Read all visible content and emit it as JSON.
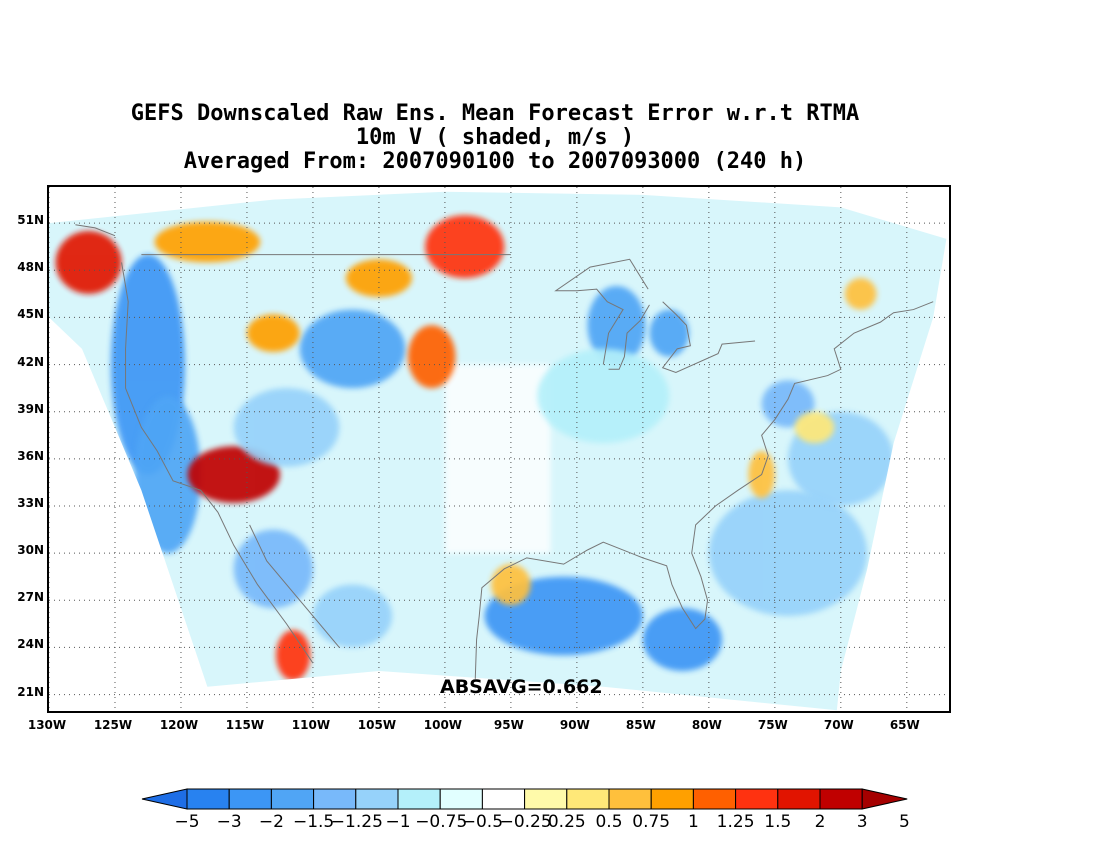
{
  "title": {
    "line1": "GEFS Downscaled Raw Ens. Mean Forecast Error w.r.t RTMA",
    "line2": "10m V ( shaded, m/s )",
    "line3": "Averaged From: 2007090100 to 2007093000 (240 h)"
  },
  "map": {
    "lat_labels": [
      "51N",
      "48N",
      "45N",
      "42N",
      "39N",
      "36N",
      "33N",
      "30N",
      "27N",
      "24N",
      "21N"
    ],
    "lat_values": [
      51,
      48,
      45,
      42,
      39,
      36,
      33,
      30,
      27,
      24,
      21
    ],
    "lon_labels": [
      "130W",
      "125W",
      "120W",
      "115W",
      "110W",
      "105W",
      "100W",
      "95W",
      "90W",
      "85W",
      "80W",
      "75W",
      "70W",
      "65W"
    ],
    "lon_values": [
      -130,
      -125,
      -120,
      -115,
      -110,
      -105,
      -100,
      -95,
      -90,
      -85,
      -80,
      -75,
      -70,
      -65
    ],
    "lat_range": [
      19.7,
      53.3
    ],
    "lon_range": [
      -130,
      -61.5
    ],
    "grid_style": "dotted"
  },
  "absavg_text": "ABSAVG=0.662",
  "colorbar": {
    "labels": [
      "−5",
      "−3",
      "−2",
      "−1.5",
      "−1.25",
      "−1",
      "−0.75",
      "−0.5",
      "−0.25",
      "0.25",
      "0.5",
      "0.75",
      "1",
      "1.25",
      "1.5",
      "2",
      "3",
      "5"
    ],
    "colors": [
      "#1e6ee6",
      "#2882f0",
      "#3c96f5",
      "#50a5f5",
      "#78b9fa",
      "#96d2fa",
      "#b4f0fa",
      "#e1ffff",
      "#ffffff",
      "#fffaaa",
      "#ffe878",
      "#ffc03c",
      "#ffa000",
      "#ff6000",
      "#ff3210",
      "#e11400",
      "#c00000",
      "#a50000"
    ]
  },
  "field_regions": [
    {
      "lon": -122.5,
      "lat": 42,
      "rx": 2.8,
      "ry": 7,
      "value": -2
    },
    {
      "lon": -121,
      "lat": 35,
      "rx": 2.5,
      "ry": 5,
      "value": -1.5
    },
    {
      "lon": -127,
      "lat": 48.5,
      "rx": 2.5,
      "ry": 2,
      "value": 2
    },
    {
      "lon": -116,
      "lat": 35,
      "rx": 3.5,
      "ry": 1.8,
      "value": 2.5
    },
    {
      "lon": -111.5,
      "lat": 23.5,
      "rx": 1.3,
      "ry": 1.6,
      "value": 1.5
    },
    {
      "lon": -107,
      "lat": 43,
      "rx": 4,
      "ry": 2.5,
      "value": -1.5
    },
    {
      "lon": -112,
      "lat": 38,
      "rx": 4,
      "ry": 2.5,
      "value": -1
    },
    {
      "lon": -113,
      "lat": 44,
      "rx": 2,
      "ry": 1.2,
      "value": 1
    },
    {
      "lon": -98.5,
      "lat": 49.5,
      "rx": 3,
      "ry": 2,
      "value": 1.5
    },
    {
      "lon": -101,
      "lat": 42.5,
      "rx": 1.8,
      "ry": 2,
      "value": 1.25
    },
    {
      "lon": -105,
      "lat": 47.5,
      "rx": 2.5,
      "ry": 1.2,
      "value": 1
    },
    {
      "lon": -118,
      "lat": 49.8,
      "rx": 4,
      "ry": 1.3,
      "value": 1
    },
    {
      "lon": -87,
      "lat": 44.5,
      "rx": 2.2,
      "ry": 2.5,
      "value": -1.5
    },
    {
      "lon": -83,
      "lat": 44,
      "rx": 1.5,
      "ry": 1.5,
      "value": -1.5
    },
    {
      "lon": -88,
      "lat": 40,
      "rx": 5,
      "ry": 3,
      "value": -0.75
    },
    {
      "lon": -91,
      "lat": 26,
      "rx": 6,
      "ry": 2.5,
      "value": -2
    },
    {
      "lon": -82,
      "lat": 24.5,
      "rx": 3,
      "ry": 2,
      "value": -2
    },
    {
      "lon": -74,
      "lat": 30,
      "rx": 6,
      "ry": 4,
      "value": -1
    },
    {
      "lon": -70,
      "lat": 36,
      "rx": 4,
      "ry": 3,
      "value": -1
    },
    {
      "lon": -74,
      "lat": 39.5,
      "rx": 2,
      "ry": 1.5,
      "value": -1.25
    },
    {
      "lon": -76,
      "lat": 35,
      "rx": 1,
      "ry": 1.5,
      "value": 0.75
    },
    {
      "lon": -95,
      "lat": 28,
      "rx": 1.5,
      "ry": 1.3,
      "value": 0.75
    },
    {
      "lon": -72,
      "lat": 38,
      "rx": 1.5,
      "ry": 1,
      "value": 0.5
    },
    {
      "lon": -68.5,
      "lat": 46.5,
      "rx": 1.2,
      "ry": 1,
      "value": 0.75
    },
    {
      "lon": -113,
      "lat": 29,
      "rx": 3,
      "ry": 2.5,
      "value": -1.25
    },
    {
      "lon": -107,
      "lat": 26,
      "rx": 3,
      "ry": 2,
      "value": -1
    }
  ]
}
